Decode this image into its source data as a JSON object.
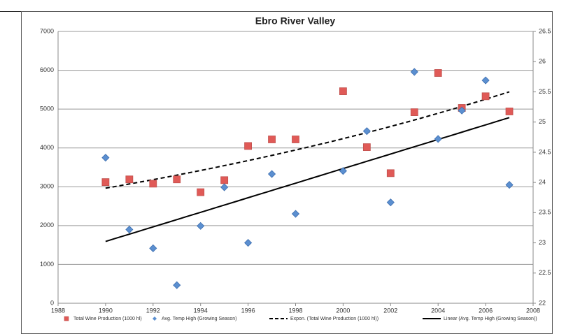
{
  "chart_data": {
    "type": "scatter",
    "title": "Ebro River Valley",
    "x": [
      1990,
      1991,
      1992,
      1993,
      1994,
      1995,
      1996,
      1997,
      1998,
      2000,
      2001,
      2002,
      2003,
      2004,
      2005,
      2006,
      2007
    ],
    "xlim": [
      1988,
      2008
    ],
    "xticks": [
      1988,
      1990,
      1992,
      1994,
      1996,
      1998,
      2000,
      2002,
      2004,
      2006,
      2008
    ],
    "ylim": [
      0,
      7000
    ],
    "yticks": [
      0,
      1000,
      2000,
      3000,
      4000,
      5000,
      6000,
      7000
    ],
    "y2lim": [
      22,
      26.5
    ],
    "y2ticks": [
      22,
      22.5,
      23,
      23.5,
      24,
      24.5,
      25,
      25.5,
      26,
      26.5
    ],
    "grid": true,
    "series": [
      {
        "name": "Total Wine Production (1000 hl)",
        "color": "#e05a57",
        "marker": "square",
        "axis": "y",
        "values": [
          3120,
          3190,
          3080,
          3190,
          2860,
          3170,
          4050,
          4220,
          4220,
          5460,
          4020,
          3350,
          4920,
          5930,
          5030,
          5330,
          4940
        ]
      },
      {
        "name": "Avg. Temp High (Growing Season)",
        "color": "#5b8fd0",
        "marker": "diamond",
        "axis": "y2",
        "values": [
          24.41,
          23.22,
          22.91,
          22.3,
          23.28,
          23.92,
          23.0,
          24.14,
          23.48,
          24.19,
          24.85,
          23.67,
          25.83,
          24.72,
          25.19,
          25.69,
          23.96
        ]
      }
    ],
    "trendlines": [
      {
        "name": "Expon. (Total Wine Production (1000 hl))",
        "fit": "exponential",
        "series": 0,
        "dash": true
      },
      {
        "name": "Linear (Avg. Temp High (Growing Season))",
        "fit": "linear",
        "series": 1,
        "dash": false
      }
    ]
  }
}
